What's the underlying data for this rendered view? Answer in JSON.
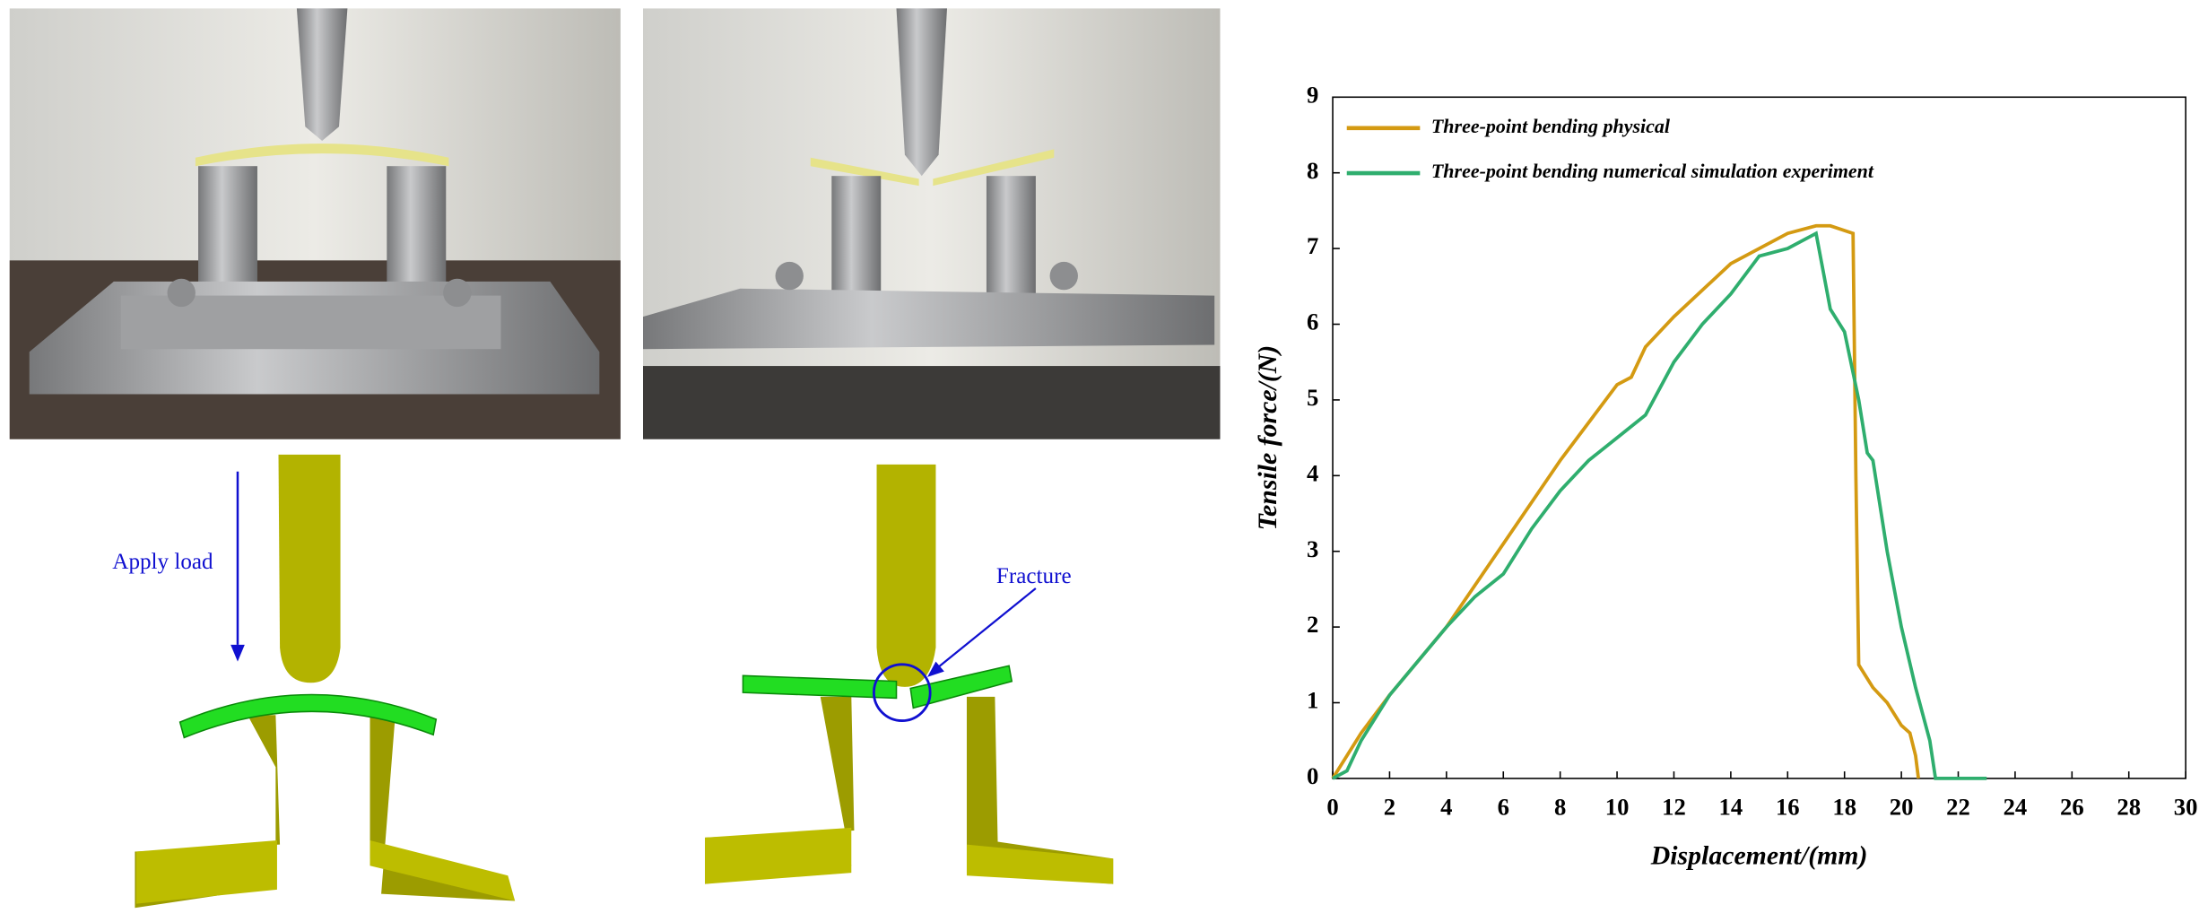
{
  "figure_labels": {
    "apply_load": "Apply load",
    "fracture": "Fracture"
  },
  "chart_data": {
    "type": "line",
    "x_label": "Displacement/(mm)",
    "y_label": "Tensile force/(N)",
    "xlim": [
      0,
      30
    ],
    "ylim": [
      0,
      9
    ],
    "xticks": [
      0,
      2,
      4,
      6,
      8,
      10,
      12,
      14,
      16,
      18,
      20,
      22,
      24,
      26,
      28,
      30
    ],
    "yticks": [
      0,
      1,
      2,
      3,
      4,
      5,
      6,
      7,
      8,
      9
    ],
    "legend": "upper left",
    "series": [
      {
        "name": "Three-point bending physical",
        "color": "#d49a12",
        "x": [
          0,
          1,
          2,
          4,
          6,
          8,
          10,
          10.5,
          11,
          12,
          14,
          16,
          17,
          17.5,
          18.3,
          18.4,
          18.5,
          19,
          19.5,
          20,
          20.3,
          20.5,
          20.6
        ],
        "values": [
          0,
          0.6,
          1.1,
          2.0,
          3.1,
          4.2,
          5.2,
          5.3,
          5.7,
          6.1,
          6.8,
          7.2,
          7.3,
          7.3,
          7.2,
          4.0,
          1.5,
          1.2,
          1.0,
          0.7,
          0.6,
          0.3,
          0
        ]
      },
      {
        "name": "Three-point bending numerical simulation experiment",
        "color": "#2fae6e",
        "x": [
          0,
          0.5,
          1,
          2,
          4,
          5,
          6,
          7,
          8,
          9,
          10,
          11,
          12,
          13,
          14,
          15,
          16,
          17,
          17.2,
          17.5,
          18,
          18.5,
          18.8,
          19,
          19.5,
          20,
          20.5,
          21,
          21.2,
          23
        ],
        "values": [
          0,
          0.1,
          0.5,
          1.1,
          2.0,
          2.4,
          2.7,
          3.3,
          3.8,
          4.2,
          4.5,
          4.8,
          5.5,
          6.0,
          6.4,
          6.9,
          7.0,
          7.2,
          6.8,
          6.2,
          5.9,
          5.0,
          4.3,
          4.2,
          3.0,
          2.0,
          1.2,
          0.5,
          0,
          0
        ]
      }
    ]
  }
}
